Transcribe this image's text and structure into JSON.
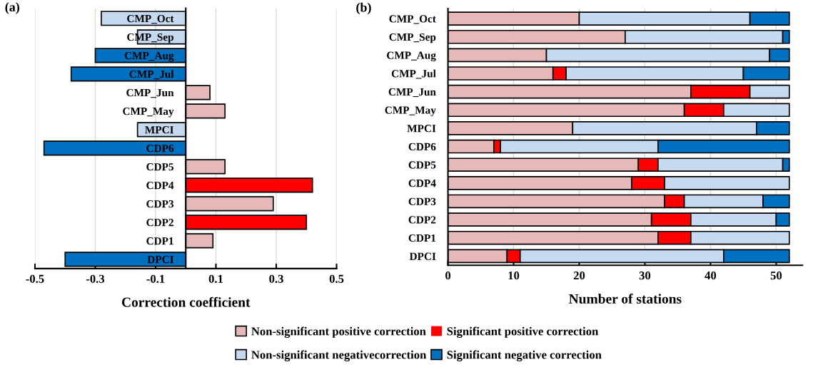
{
  "chart_data": [
    {
      "type": "bar",
      "orientation": "horizontal",
      "title": "(a)",
      "xlabel": "Correction coefficient",
      "categories": [
        "CMP_Oct",
        "CMP_Sep",
        "CMP_Aug",
        "CMP_Jul",
        "CMP_Jun",
        "CMP_May",
        "MPCI",
        "CDP6",
        "CDP5",
        "CDP4",
        "CDP3",
        "CDP2",
        "CDP1",
        "DPCI"
      ],
      "values": [
        -0.28,
        -0.16,
        -0.3,
        -0.38,
        0.08,
        0.13,
        -0.16,
        -0.47,
        0.13,
        0.42,
        0.29,
        0.4,
        0.09,
        -0.4
      ],
      "colors": [
        "#c5d9f1",
        "#c5d9f1",
        "#0070c0",
        "#0070c0",
        "#e6b8b7",
        "#e6b8b7",
        "#c5d9f1",
        "#0070c0",
        "#e6b8b7",
        "#ff0000",
        "#e6b8b7",
        "#ff0000",
        "#e6b8b7",
        "#0070c0"
      ],
      "xlim": [
        -0.5,
        0.5
      ],
      "xticks": [
        -0.5,
        -0.3,
        -0.1,
        0.1,
        0.3,
        0.5
      ],
      "grid": "x"
    },
    {
      "type": "bar",
      "orientation": "horizontal",
      "stacked": true,
      "title": "(b)",
      "xlabel": "Number of stations",
      "categories": [
        "CMP_Oct",
        "CMP_Sep",
        "CMP_Aug",
        "CMP_Jul",
        "CMP_Jun",
        "CMP_May",
        "MPCI",
        "CDP6",
        "CDP5",
        "CDP4",
        "CDP3",
        "CDP2",
        "CDP1",
        "DPCI"
      ],
      "series": [
        {
          "name": "Non-significant positive correction",
          "color": "#e6b8b7",
          "values": [
            20,
            27,
            15,
            16,
            37,
            36,
            19,
            7,
            29,
            28,
            33,
            31,
            32,
            9
          ]
        },
        {
          "name": "Significant positive correction",
          "color": "#ff0000",
          "values": [
            0,
            0,
            0,
            2,
            9,
            6,
            0,
            1,
            3,
            5,
            3,
            6,
            5,
            2
          ]
        },
        {
          "name": "Non-significant negativecorrection",
          "color": "#c5d9f1",
          "values": [
            26,
            24,
            34,
            27,
            6,
            10,
            28,
            24,
            19,
            19,
            12,
            13,
            15,
            31
          ]
        },
        {
          "name": "Significant negative correction",
          "color": "#0070c0",
          "values": [
            6,
            1,
            3,
            7,
            0,
            0,
            5,
            20,
            1,
            0,
            4,
            2,
            0,
            10
          ]
        }
      ],
      "xlim": [
        0,
        54
      ],
      "xticks": [
        0,
        10,
        20,
        30,
        40,
        50
      ],
      "grid": "x",
      "legend": "bottom"
    }
  ]
}
